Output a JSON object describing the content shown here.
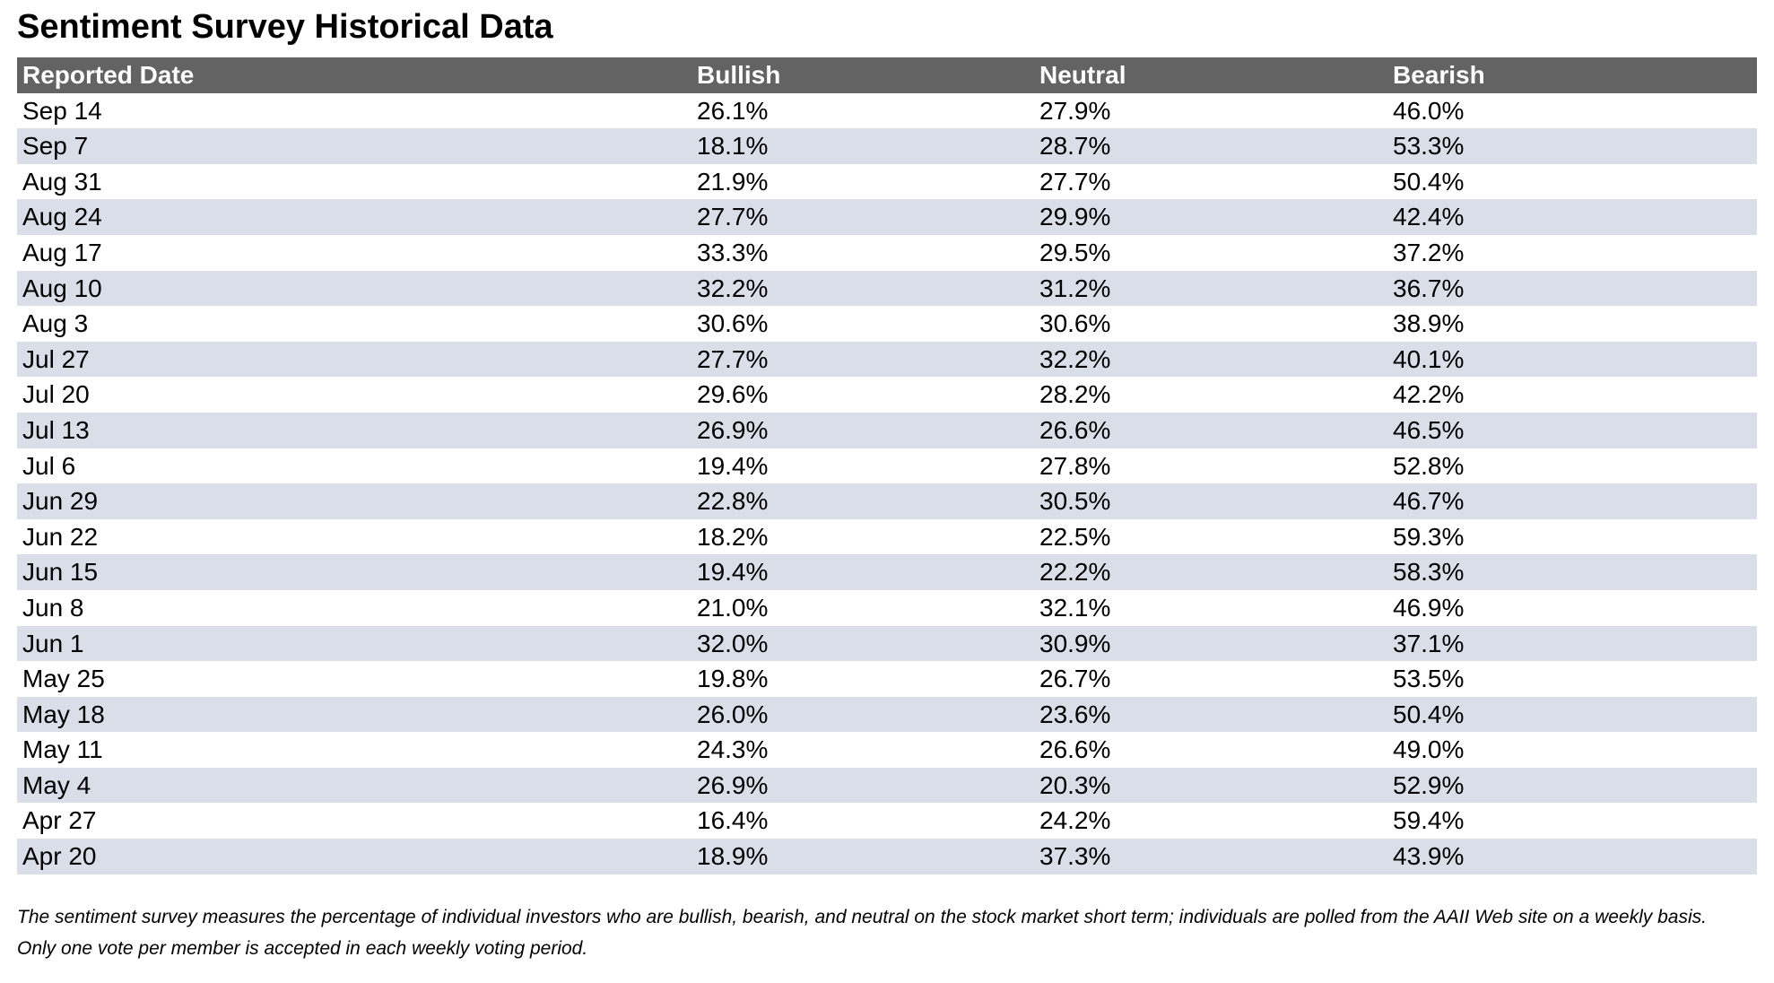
{
  "title": "Sentiment Survey Historical Data",
  "table": {
    "headers": [
      "Reported Date",
      "Bullish",
      "Neutral",
      "Bearish"
    ],
    "rows": [
      [
        "Sep 14",
        "26.1%",
        "27.9%",
        "46.0%"
      ],
      [
        "Sep 7",
        "18.1%",
        "28.7%",
        "53.3%"
      ],
      [
        "Aug 31",
        "21.9%",
        "27.7%",
        "50.4%"
      ],
      [
        "Aug 24",
        "27.7%",
        "29.9%",
        "42.4%"
      ],
      [
        "Aug 17",
        "33.3%",
        "29.5%",
        "37.2%"
      ],
      [
        "Aug 10",
        "32.2%",
        "31.2%",
        "36.7%"
      ],
      [
        "Aug 3",
        "30.6%",
        "30.6%",
        "38.9%"
      ],
      [
        "Jul 27",
        "27.7%",
        "32.2%",
        "40.1%"
      ],
      [
        "Jul 20",
        "29.6%",
        "28.2%",
        "42.2%"
      ],
      [
        "Jul 13",
        "26.9%",
        "26.6%",
        "46.5%"
      ],
      [
        "Jul 6",
        "19.4%",
        "27.8%",
        "52.8%"
      ],
      [
        "Jun 29",
        "22.8%",
        "30.5%",
        "46.7%"
      ],
      [
        "Jun 22",
        "18.2%",
        "22.5%",
        "59.3%"
      ],
      [
        "Jun 15",
        "19.4%",
        "22.2%",
        "58.3%"
      ],
      [
        "Jun 8",
        "21.0%",
        "32.1%",
        "46.9%"
      ],
      [
        "Jun 1",
        "32.0%",
        "30.9%",
        "37.1%"
      ],
      [
        "May 25",
        "19.8%",
        "26.7%",
        "53.5%"
      ],
      [
        "May 18",
        "26.0%",
        "23.6%",
        "50.4%"
      ],
      [
        "May 11",
        "24.3%",
        "26.6%",
        "49.0%"
      ],
      [
        "May 4",
        "26.9%",
        "20.3%",
        "52.9%"
      ],
      [
        "Apr 27",
        "16.4%",
        "24.2%",
        "59.4%"
      ],
      [
        "Apr 20",
        "18.9%",
        "37.3%",
        "43.9%"
      ]
    ]
  },
  "footnote": "The sentiment survey measures the percentage of individual investors who are bullish, bearish, and neutral on the stock market short term; individuals are polled from the AAII Web site on a weekly basis. Only one vote per member is accepted in each weekly voting period.",
  "colors": {
    "header_bg": "#636363",
    "header_text": "#ffffff",
    "row_alt_bg": "#d9dee9",
    "row_bg": "#ffffff"
  }
}
